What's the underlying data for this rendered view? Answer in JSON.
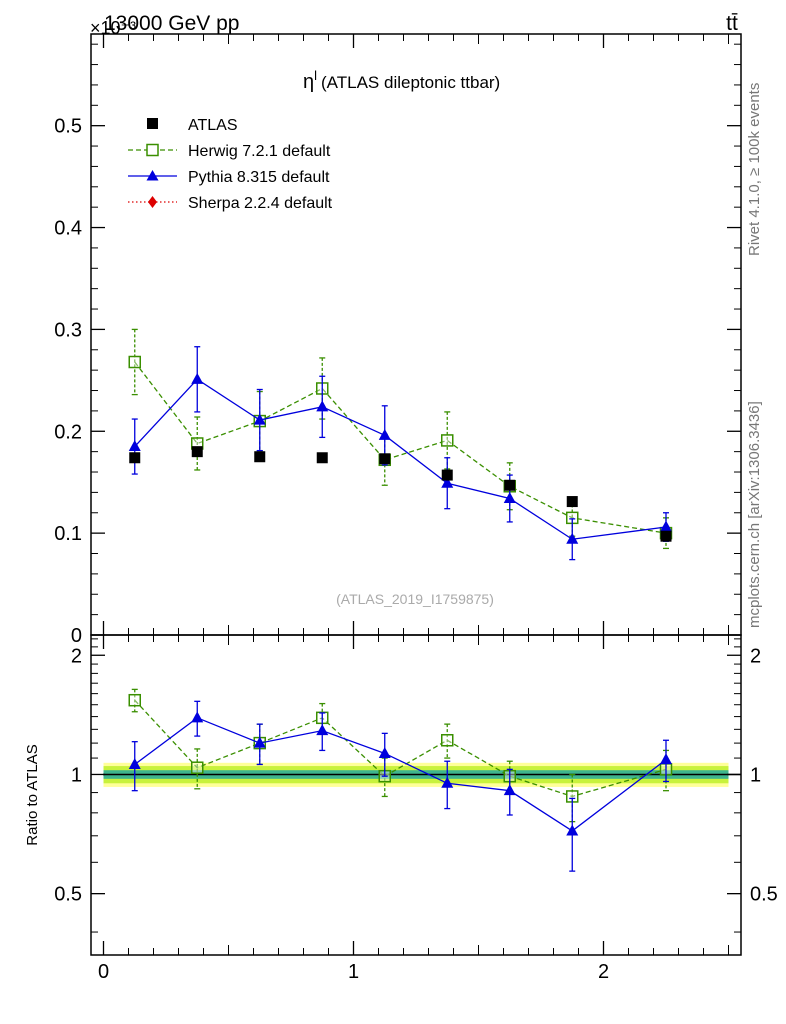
{
  "header": {
    "energy_label": "13000 GeV pp",
    "process_label": "tt̄"
  },
  "side": {
    "rivet_label": "Rivet 4.1.0, ≥ 100k events",
    "mcplots_label": "mcplots.cern.ch [arXiv:1306.3436]"
  },
  "colors": {
    "atlas": "#000000",
    "herwig": "#3a8f00",
    "pythia": "#0000dd",
    "sherpa": "#dd0000",
    "band_inner": "#3fb58e",
    "band_mid": "#c8f23c",
    "band_outer": "#ffff99"
  },
  "chart_data": [
    {
      "type": "scatter",
      "panel": "main",
      "title_symbol": "η",
      "title_sup": "l",
      "title_text": "(ATLAS dileptonic ttbar)",
      "watermark": "(ATLAS_2019_I1759875)",
      "exponent_label": "×10⁻³",
      "xlim": [
        -0.05,
        2.55
      ],
      "ylim": [
        0,
        0.59
      ],
      "yticks": [
        0,
        0.1,
        0.2,
        0.3,
        0.4,
        0.5
      ],
      "yticklabels": [
        "0",
        "0.1",
        "0.2",
        "0.3",
        "0.4",
        "0.5"
      ],
      "legend_position": "top-left",
      "series": [
        {
          "name": "ATLAS",
          "marker": "square-filled",
          "line": "none",
          "x": [
            0.125,
            0.375,
            0.625,
            0.875,
            1.125,
            1.375,
            1.625,
            1.875,
            2.25
          ],
          "y": [
            0.174,
            0.18,
            0.175,
            0.174,
            0.173,
            0.157,
            0.147,
            0.131,
            0.097
          ],
          "yerr": [
            0.003,
            0.003,
            0.003,
            0.003,
            0.003,
            0.003,
            0.003,
            0.003,
            0.003
          ]
        },
        {
          "name": "Herwig 7.2.1 default",
          "marker": "square-open",
          "line": "dashed",
          "x": [
            0.125,
            0.375,
            0.625,
            0.875,
            1.125,
            1.375,
            1.625,
            1.875,
            2.25
          ],
          "y": [
            0.268,
            0.188,
            0.21,
            0.242,
            0.172,
            0.191,
            0.146,
            0.115,
            0.1
          ],
          "yerr": [
            0.032,
            0.026,
            0.029,
            0.03,
            0.025,
            0.028,
            0.023,
            0.018,
            0.015
          ]
        },
        {
          "name": "Pythia 8.315 default",
          "marker": "triangle-filled",
          "line": "solid",
          "x": [
            0.125,
            0.375,
            0.625,
            0.875,
            1.125,
            1.375,
            1.625,
            1.875,
            2.25
          ],
          "y": [
            0.185,
            0.251,
            0.211,
            0.224,
            0.196,
            0.149,
            0.134,
            0.094,
            0.106
          ],
          "yerr": [
            0.027,
            0.032,
            0.03,
            0.03,
            0.029,
            0.025,
            0.023,
            0.02,
            0.014
          ]
        },
        {
          "name": "Sherpa 2.2.4 default",
          "marker": "diamond-filled",
          "line": "dotted",
          "x": [],
          "y": [],
          "yerr": []
        }
      ]
    },
    {
      "type": "scatter",
      "panel": "ratio",
      "ylabel": "Ratio to ATLAS",
      "xlim": [
        -0.05,
        2.55
      ],
      "ylim": [
        0.35,
        2.25
      ],
      "yticks": [
        0.5,
        1,
        2
      ],
      "yticklabels": [
        "0.5",
        "1",
        "2"
      ],
      "xticks": [
        0,
        1,
        2
      ],
      "xticklabels": [
        "0",
        "1",
        "2"
      ],
      "band": {
        "center": 1.0,
        "half_widths": [
          0.07,
          0.05,
          0.025
        ]
      },
      "series": [
        {
          "name": "Herwig 7.2.1 default",
          "x": [
            0.125,
            0.375,
            0.625,
            0.875,
            1.125,
            1.375,
            1.625,
            1.875,
            2.25
          ],
          "y": [
            1.54,
            1.04,
            1.2,
            1.39,
            0.99,
            1.22,
            0.99,
            0.88,
            1.03
          ],
          "yerr": [
            0.1,
            0.12,
            0.14,
            0.12,
            0.11,
            0.12,
            0.09,
            0.12,
            0.12
          ]
        },
        {
          "name": "Pythia 8.315 default",
          "x": [
            0.125,
            0.375,
            0.625,
            0.875,
            1.125,
            1.375,
            1.625,
            1.875,
            2.25
          ],
          "y": [
            1.06,
            1.39,
            1.2,
            1.29,
            1.13,
            0.95,
            0.91,
            0.72,
            1.09
          ],
          "yerr": [
            0.15,
            0.14,
            0.14,
            0.14,
            0.14,
            0.13,
            0.12,
            0.15,
            0.13
          ]
        }
      ]
    }
  ]
}
